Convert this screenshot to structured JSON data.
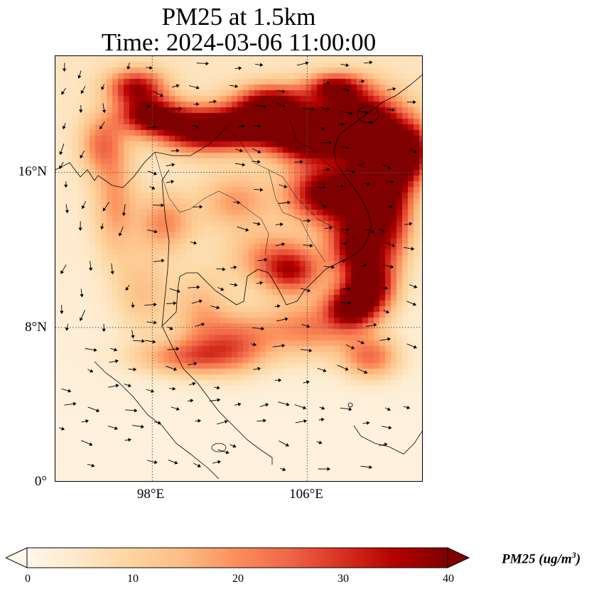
{
  "title": {
    "line1": "PM25 at 1.5km",
    "line2": "Time: 2024-03-06 11:00:00"
  },
  "axes": {
    "y_ticks": [
      "16°N",
      "8°N",
      "0°"
    ],
    "x_ticks": [
      "98°E",
      "106°E"
    ]
  },
  "map_extent": {
    "lon": [
      93,
      112
    ],
    "lat": [
      0,
      22
    ]
  },
  "gridlines": {
    "lon": [
      98,
      106
    ],
    "lat": [
      8,
      16
    ],
    "style": "dotted"
  },
  "colorbar": {
    "ticks": [
      "0",
      "10",
      "20",
      "30",
      "40"
    ],
    "range": [
      0,
      40
    ],
    "colormap": "OrRd",
    "extend": "both",
    "label_text": "PM25 (ug/m",
    "label_sup": "3",
    "label_close": ")"
  },
  "colors": {
    "low": "#fff7ec",
    "mid": "#f6934f",
    "high": "#7f0000",
    "coast": "#000000"
  }
}
